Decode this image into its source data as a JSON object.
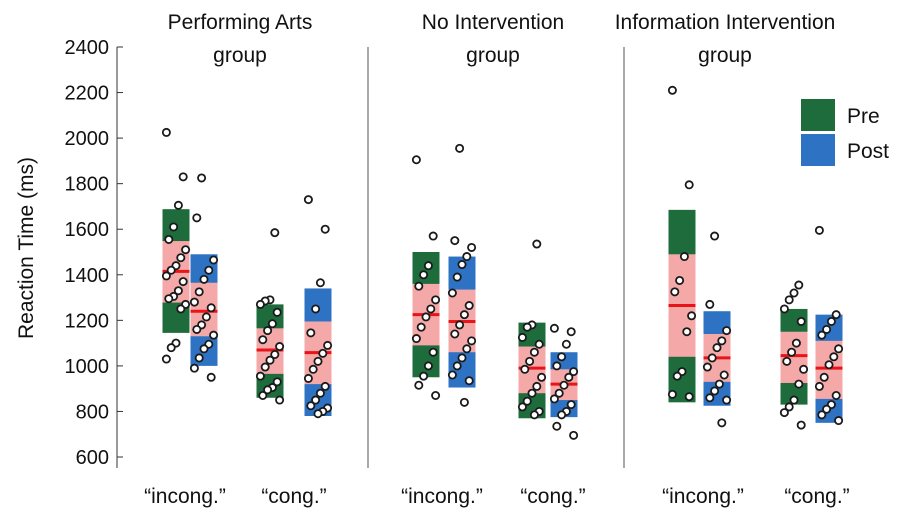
{
  "chart_data": {
    "type": "box-scatter",
    "ylabel": "Reaction Time (ms)",
    "ylim": [
      500,
      2450
    ],
    "yticks": [
      600,
      800,
      1000,
      1200,
      1400,
      1600,
      1800,
      2000,
      2200,
      2400
    ],
    "legend": {
      "placement": "top-right",
      "entries": [
        {
          "name": "Pre",
          "color": "#1e6b3c"
        },
        {
          "name": "Post",
          "color": "#2e72c4"
        }
      ]
    },
    "colors": {
      "ci": "#f4a9a8",
      "mean": "#e8141a",
      "pre": "#1e6b3c",
      "post": "#2e72c4"
    },
    "panels": [
      {
        "title": [
          "Performing Arts",
          "group"
        ],
        "categories": [
          "“incong.”",
          "“cong.”"
        ],
        "series": [
          {
            "condition": "incong.",
            "session": "Pre",
            "mean": 1415,
            "ci": [
              1278,
              1548
            ],
            "sd": [
              1145,
              1688
            ],
            "points": [
              2025,
              1830,
              1705,
              1610,
              1555,
              1510,
              1475,
              1440,
              1420,
              1395,
              1370,
              1330,
              1305,
              1295,
              1270,
              1250,
              1100,
              1080,
              1030
            ]
          },
          {
            "condition": "incong.",
            "session": "Post",
            "mean": 1240,
            "ci": [
              1130,
              1365
            ],
            "sd": [
              1000,
              1490
            ],
            "points": [
              1825,
              1650,
              1465,
              1420,
              1380,
              1325,
              1280,
              1255,
              1215,
              1180,
              1160,
              1135,
              1095,
              1075,
              1035,
              990,
              950
            ]
          },
          {
            "condition": "cong.",
            "session": "Pre",
            "mean": 1070,
            "ci": [
              965,
              1165
            ],
            "sd": [
              860,
              1270
            ],
            "points": [
              1585,
              1290,
              1285,
              1270,
              1235,
              1185,
              1155,
              1115,
              1085,
              1050,
              1025,
              995,
              955,
              930,
              905,
              895,
              870,
              850
            ]
          },
          {
            "condition": "cong.",
            "session": "Post",
            "mean": 1058,
            "ci": [
              920,
              1195
            ],
            "sd": [
              780,
              1340
            ],
            "points": [
              1730,
              1600,
              1365,
              1250,
              1145,
              1090,
              1055,
              1020,
              985,
              945,
              910,
              880,
              850,
              825,
              815,
              800,
              790
            ]
          }
        ]
      },
      {
        "title": [
          "No Intervention",
          "group"
        ],
        "categories": [
          "“incong.”",
          "“cong.”"
        ],
        "series": [
          {
            "condition": "incong.",
            "session": "Pre",
            "mean": 1225,
            "ci": [
              1090,
              1360
            ],
            "sd": [
              950,
              1500
            ],
            "points": [
              1905,
              1570,
              1440,
              1400,
              1350,
              1290,
              1250,
              1215,
              1170,
              1120,
              1060,
              1000,
              955,
              915,
              870
            ]
          },
          {
            "condition": "incong.",
            "session": "Post",
            "mean": 1195,
            "ci": [
              1060,
              1335
            ],
            "sd": [
              905,
              1480
            ],
            "points": [
              1955,
              1550,
              1520,
              1480,
              1445,
              1390,
              1320,
              1265,
              1225,
              1180,
              1140,
              1110,
              1075,
              1035,
              1000,
              960,
              935,
              840
            ]
          },
          {
            "condition": "cong.",
            "session": "Pre",
            "mean": 990,
            "ci": [
              880,
              1085
            ],
            "sd": [
              770,
              1190
            ],
            "points": [
              1535,
              1180,
              1170,
              1125,
              1095,
              1060,
              1020,
              985,
              950,
              910,
              880,
              845,
              820,
              800,
              785
            ]
          },
          {
            "condition": "cong.",
            "session": "Post",
            "mean": 920,
            "ci": [
              850,
              985
            ],
            "sd": [
              775,
              1060
            ],
            "points": [
              1165,
              1150,
              1095,
              1040,
              1000,
              975,
              950,
              915,
              880,
              855,
              830,
              800,
              785,
              735,
              695
            ]
          }
        ]
      },
      {
        "title": [
          "Information Intervention",
          "group"
        ],
        "categories": [
          "“incong.”",
          "“cong.”"
        ],
        "series": [
          {
            "condition": "incong.",
            "session": "Pre",
            "mean": 1265,
            "ci": [
              1040,
              1490
            ],
            "sd": [
              840,
              1685
            ],
            "points": [
              2210,
              1795,
              1480,
              1375,
              1325,
              1220,
              1150,
              975,
              955,
              875,
              865
            ]
          },
          {
            "condition": "incong.",
            "session": "Post",
            "mean": 1035,
            "ci": [
              930,
              1140
            ],
            "sd": [
              825,
              1240
            ],
            "points": [
              1570,
              1270,
              1155,
              1110,
              1080,
              1035,
              995,
              960,
              920,
              890,
              860,
              850,
              750
            ]
          },
          {
            "condition": "cong.",
            "session": "Pre",
            "mean": 1045,
            "ci": [
              925,
              1150
            ],
            "sd": [
              830,
              1250
            ],
            "points": [
              1355,
              1320,
              1290,
              1250,
              1195,
              1100,
              1060,
              1020,
              985,
              920,
              850,
              820,
              795,
              740
            ]
          },
          {
            "condition": "cong.",
            "session": "Post",
            "mean": 990,
            "ci": [
              855,
              1110
            ],
            "sd": [
              750,
              1225
            ],
            "points": [
              1595,
              1225,
              1195,
              1160,
              1135,
              1075,
              1040,
              1005,
              950,
              910,
              870,
              830,
              810,
              785,
              760
            ]
          }
        ]
      }
    ]
  }
}
